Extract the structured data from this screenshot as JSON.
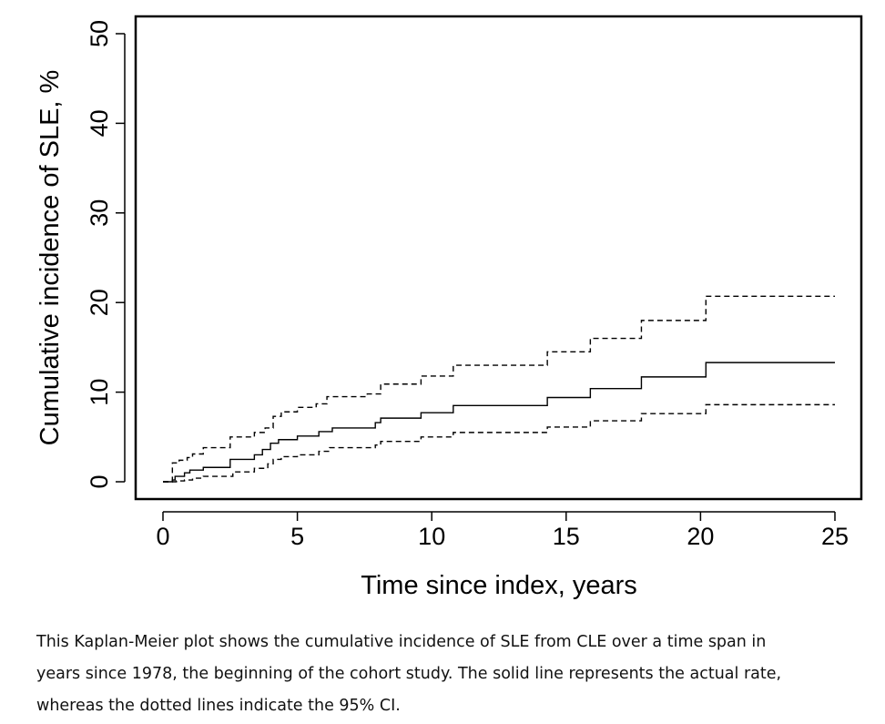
{
  "chart_data": {
    "type": "line",
    "title": "",
    "xlabel": "Time since index, years",
    "ylabel": "Cumulative incidence of SLE, %",
    "xlim": [
      0,
      25
    ],
    "ylim": [
      0,
      50
    ],
    "x_ticks": [
      0,
      5,
      10,
      15,
      20,
      25
    ],
    "y_ticks": [
      0,
      10,
      20,
      30,
      40,
      50
    ],
    "grid": false,
    "legend": "none",
    "series": [
      {
        "style": "solid",
        "step": true,
        "x": [
          0,
          0.35,
          0.45,
          0.8,
          1.0,
          1.5,
          2.5,
          3.4,
          3.7,
          4.0,
          4.3,
          5.0,
          5.8,
          6.3,
          7.9,
          8.1,
          9.6,
          10.8,
          14.3,
          15.9,
          17.8,
          20.2,
          25
        ],
        "y": [
          0,
          0.2,
          0.6,
          1.0,
          1.3,
          1.6,
          2.5,
          3.0,
          3.6,
          4.3,
          4.7,
          5.1,
          5.6,
          6.0,
          6.6,
          7.1,
          7.7,
          8.5,
          9.4,
          10.4,
          11.7,
          13.3,
          13.3
        ]
      },
      {
        "style": "dashed",
        "step": true,
        "x": [
          0,
          0.35,
          0.6,
          0.9,
          1.1,
          1.5,
          2.5,
          3.4,
          3.8,
          4.1,
          4.4,
          5.0,
          5.7,
          6.1,
          7.6,
          8.1,
          9.6,
          10.8,
          14.3,
          15.9,
          17.8,
          20.2,
          25
        ],
        "y": [
          0,
          2.1,
          2.4,
          2.7,
          3.1,
          3.8,
          5.0,
          5.5,
          6.0,
          7.3,
          7.8,
          8.3,
          8.7,
          9.5,
          9.8,
          10.9,
          11.8,
          13.0,
          14.5,
          16.0,
          18.0,
          20.7,
          20.7
        ]
      },
      {
        "style": "dashed",
        "step": true,
        "x": [
          0,
          0.5,
          0.8,
          1.1,
          1.5,
          2.6,
          3.4,
          3.9,
          4.1,
          4.4,
          5.0,
          5.8,
          6.2,
          7.9,
          8.1,
          9.6,
          10.8,
          14.3,
          15.9,
          17.8,
          20.2,
          25
        ],
        "y": [
          0,
          0.1,
          0.2,
          0.4,
          0.6,
          1.1,
          1.5,
          2.0,
          2.5,
          2.8,
          3.0,
          3.4,
          3.8,
          4.1,
          4.5,
          5.0,
          5.5,
          6.1,
          6.8,
          7.6,
          8.6,
          8.6
        ]
      }
    ]
  },
  "caption": {
    "line1": "This Kaplan-Meier plot shows the cumulative incidence of SLE from CLE over a time span in",
    "line2": "years since 1978, the beginning of the cohort study. The solid line represents the actual rate,",
    "line3": "whereas the dotted lines indicate the 95% CI."
  }
}
